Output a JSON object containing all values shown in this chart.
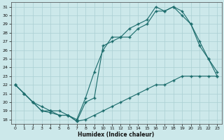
{
  "xlabel": "Humidex (Indice chaleur)",
  "background_color": "#cce8ea",
  "grid_color": "#aacfd2",
  "line_color": "#1a6b6b",
  "xlim": [
    -0.5,
    23.5
  ],
  "ylim": [
    17.5,
    31.5
  ],
  "xticks": [
    0,
    1,
    2,
    3,
    4,
    5,
    6,
    7,
    8,
    9,
    10,
    11,
    12,
    13,
    14,
    15,
    16,
    17,
    18,
    19,
    20,
    21,
    22,
    23
  ],
  "yticks": [
    18,
    19,
    20,
    21,
    22,
    23,
    24,
    25,
    26,
    27,
    28,
    29,
    30,
    31
  ],
  "line1_x": [
    0,
    1,
    2,
    3,
    4,
    5,
    6,
    7,
    8,
    9,
    10,
    11,
    12,
    13,
    14,
    15,
    16,
    17,
    18,
    19,
    20,
    21,
    22,
    23
  ],
  "line1_y": [
    22.0,
    21.0,
    20.0,
    19.0,
    19.0,
    18.5,
    18.5,
    17.8,
    18.0,
    18.5,
    19.0,
    19.5,
    20.0,
    20.5,
    21.0,
    21.5,
    22.0,
    22.0,
    22.5,
    23.0,
    23.0,
    23.0,
    23.0,
    23.0
  ],
  "line2_x": [
    0,
    1,
    2,
    3,
    4,
    5,
    6,
    7,
    8,
    9,
    10,
    11,
    12,
    13,
    14,
    15,
    16,
    17,
    18,
    19,
    20,
    21,
    22,
    23
  ],
  "line2_y": [
    22.0,
    21.0,
    20.0,
    19.0,
    18.8,
    18.5,
    18.5,
    17.8,
    20.0,
    20.5,
    26.5,
    27.0,
    27.5,
    27.5,
    28.5,
    29.0,
    30.5,
    30.5,
    31.0,
    30.0,
    29.0,
    26.5,
    25.0,
    23.0
  ],
  "line3_x": [
    0,
    1,
    2,
    3,
    4,
    5,
    6,
    7,
    8,
    9,
    10,
    11,
    12,
    13,
    14,
    15,
    16,
    17,
    18,
    19,
    20,
    21,
    22,
    23
  ],
  "line3_y": [
    22.0,
    21.0,
    20.0,
    19.5,
    19.0,
    19.0,
    18.5,
    18.0,
    20.5,
    23.5,
    26.0,
    27.5,
    27.5,
    28.5,
    29.0,
    29.5,
    31.0,
    30.5,
    31.0,
    30.5,
    29.0,
    27.0,
    25.0,
    23.5
  ]
}
